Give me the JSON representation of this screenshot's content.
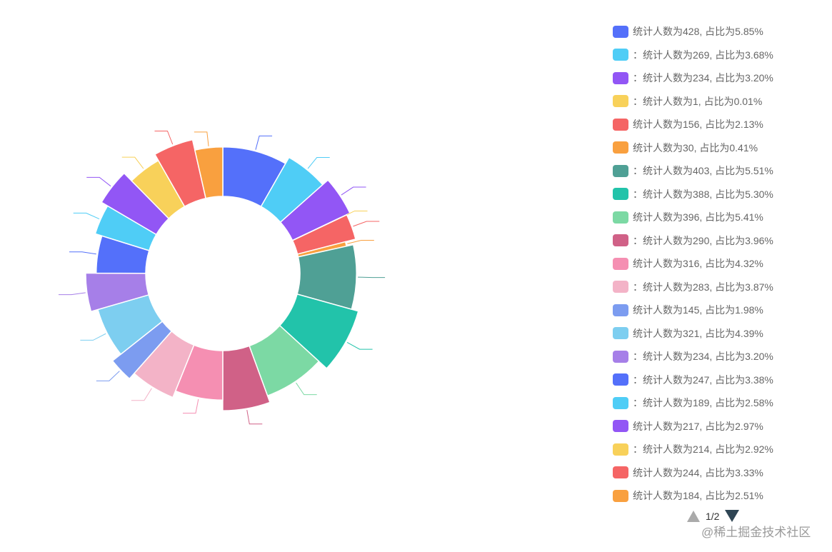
{
  "chart_data": {
    "type": "pie",
    "variant": "donut",
    "legend_position": "right",
    "legend_page": "1/2",
    "slices": [
      {
        "legend": "统计人数为428, 占比为5.85%",
        "value": 428,
        "percent": 5.85,
        "color": "#5470fa"
      },
      {
        "legend": "：统计人数为269, 占比为3.68%",
        "value": 269,
        "percent": 3.68,
        "color": "#4fcdf6"
      },
      {
        "legend": "：统计人数为234, 占比为3.20%",
        "value": 234,
        "percent": 3.2,
        "color": "#9256f5"
      },
      {
        "legend": "：统计人数为1, 占比为0.01%",
        "value": 1,
        "percent": 0.01,
        "color": "#f8d15a"
      },
      {
        "legend": "统计人数为156, 占比为2.13%",
        "value": 156,
        "percent": 2.13,
        "color": "#f56565"
      },
      {
        "legend": "统计人数为30, 占比为0.41%",
        "value": 30,
        "percent": 0.41,
        "color": "#f9a03f"
      },
      {
        "legend": "：统计人数为403, 占比为5.51%",
        "value": 403,
        "percent": 5.51,
        "color": "#4fa095"
      },
      {
        "legend": "：统计人数为388, 占比为5.30%",
        "value": 388,
        "percent": 5.3,
        "color": "#22c3aa"
      },
      {
        "legend": "统计人数为396, 占比为5.41%",
        "value": 396,
        "percent": 5.41,
        "color": "#7cd9a4"
      },
      {
        "legend": "：统计人数为290, 占比为3.96%",
        "value": 290,
        "percent": 3.96,
        "color": "#d06187"
      },
      {
        "legend": "统计人数为316, 占比为4.32%",
        "value": 316,
        "percent": 4.32,
        "color": "#f58fb2"
      },
      {
        "legend": "：统计人数为283, 占比为3.87%",
        "value": 283,
        "percent": 3.87,
        "color": "#f3b3c7"
      },
      {
        "legend": "统计人数为145, 占比为1.98%",
        "value": 145,
        "percent": 1.98,
        "color": "#7c9cf0"
      },
      {
        "legend": "统计人数为321, 占比为4.39%",
        "value": 321,
        "percent": 4.39,
        "color": "#7dcef0"
      },
      {
        "legend": "：统计人数为234, 占比为3.20%",
        "value": 234,
        "percent": 3.2,
        "color": "#a67fe8"
      },
      {
        "legend": "：统计人数为247, 占比为3.38%",
        "value": 247,
        "percent": 3.38,
        "color": "#5470fa"
      },
      {
        "legend": "：统计人数为189, 占比为2.58%",
        "value": 189,
        "percent": 2.58,
        "color": "#4fcdf6"
      },
      {
        "legend": "统计人数为217, 占比为2.97%",
        "value": 217,
        "percent": 2.97,
        "color": "#9256f5"
      },
      {
        "legend": "：统计人数为214, 占比为2.92%",
        "value": 214,
        "percent": 2.92,
        "color": "#f8d15a"
      },
      {
        "legend": "统计人数为244, 占比为3.33%",
        "value": 244,
        "percent": 3.33,
        "color": "#f56565"
      },
      {
        "legend": "统计人数为184, 占比为2.51%",
        "value": 184,
        "percent": 2.51,
        "color": "#f9a03f"
      }
    ]
  },
  "footer": {
    "watermark": "@稀土掘金技术社区"
  }
}
